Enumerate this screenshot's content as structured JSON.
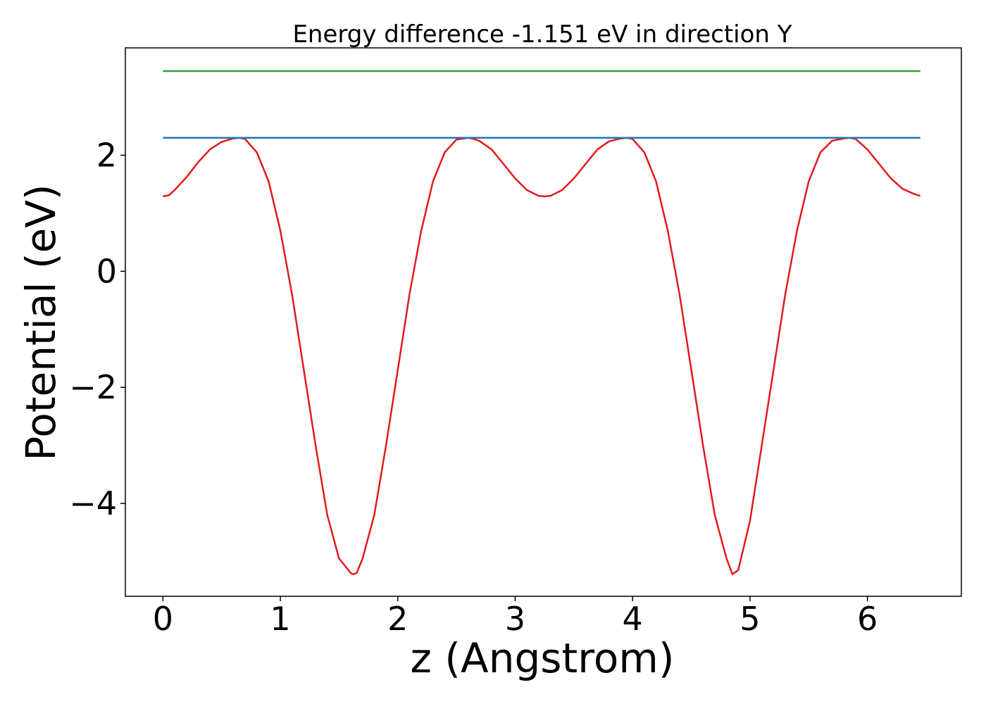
{
  "chart_data": {
    "type": "line",
    "title": "Energy difference -1.151 eV in direction Y",
    "xlabel": "z (Angstrom)",
    "ylabel": "Potential (eV)",
    "xlim": [
      -0.32,
      6.8
    ],
    "ylim": [
      -5.6,
      3.85
    ],
    "xticks": [
      0,
      1,
      2,
      3,
      4,
      5,
      6
    ],
    "xtick_labels": [
      "0",
      "1",
      "2",
      "3",
      "4",
      "5",
      "6"
    ],
    "yticks": [
      2,
      0,
      -2,
      -4
    ],
    "ytick_labels": [
      "2",
      "0",
      "−2",
      "−4"
    ],
    "grid": false,
    "series": [
      {
        "color": "#e31a1c",
        "x": [
          0,
          0.05,
          0.1,
          0.2,
          0.3,
          0.4,
          0.5,
          0.6,
          0.65,
          0.7,
          0.8,
          0.9,
          1.0,
          1.1,
          1.2,
          1.3,
          1.4,
          1.5,
          1.6,
          1.62,
          1.65,
          1.7,
          1.8,
          1.9,
          2.0,
          2.1,
          2.2,
          2.3,
          2.4,
          2.5,
          2.6,
          2.65,
          2.7,
          2.8,
          2.9,
          3.0,
          3.1,
          3.2,
          3.25,
          3.3,
          3.4,
          3.5,
          3.6,
          3.7,
          3.8,
          3.9,
          3.95,
          4.0,
          4.1,
          4.2,
          4.3,
          4.4,
          4.5,
          4.6,
          4.7,
          4.8,
          4.85,
          4.9,
          5.0,
          5.1,
          5.2,
          5.3,
          5.4,
          5.5,
          5.6,
          5.7,
          5.8,
          5.85,
          5.9,
          6.0,
          6.1,
          6.2,
          6.3,
          6.4,
          6.45
        ],
        "y": [
          1.29,
          1.31,
          1.4,
          1.62,
          1.88,
          2.1,
          2.23,
          2.29,
          2.3,
          2.28,
          2.05,
          1.55,
          0.7,
          -0.4,
          -1.7,
          -3.0,
          -4.2,
          -4.95,
          -5.2,
          -5.22,
          -5.2,
          -4.95,
          -4.2,
          -3.0,
          -1.7,
          -0.4,
          0.7,
          1.55,
          2.05,
          2.27,
          2.3,
          2.28,
          2.24,
          2.1,
          1.85,
          1.6,
          1.4,
          1.3,
          1.29,
          1.3,
          1.4,
          1.6,
          1.85,
          2.1,
          2.24,
          2.29,
          2.3,
          2.28,
          2.05,
          1.55,
          0.7,
          -0.4,
          -1.7,
          -3.0,
          -4.2,
          -4.95,
          -5.22,
          -5.15,
          -4.3,
          -3.0,
          -1.7,
          -0.4,
          0.7,
          1.55,
          2.05,
          2.25,
          2.29,
          2.3,
          2.28,
          2.1,
          1.85,
          1.6,
          1.42,
          1.33,
          1.3
        ]
      },
      {
        "color": "#1f77b4",
        "x": [
          0,
          6.45
        ],
        "y": [
          2.3,
          2.3
        ]
      },
      {
        "color": "#2ca02c",
        "x": [
          0,
          6.45
        ],
        "y": [
          3.45,
          3.45
        ]
      }
    ]
  }
}
